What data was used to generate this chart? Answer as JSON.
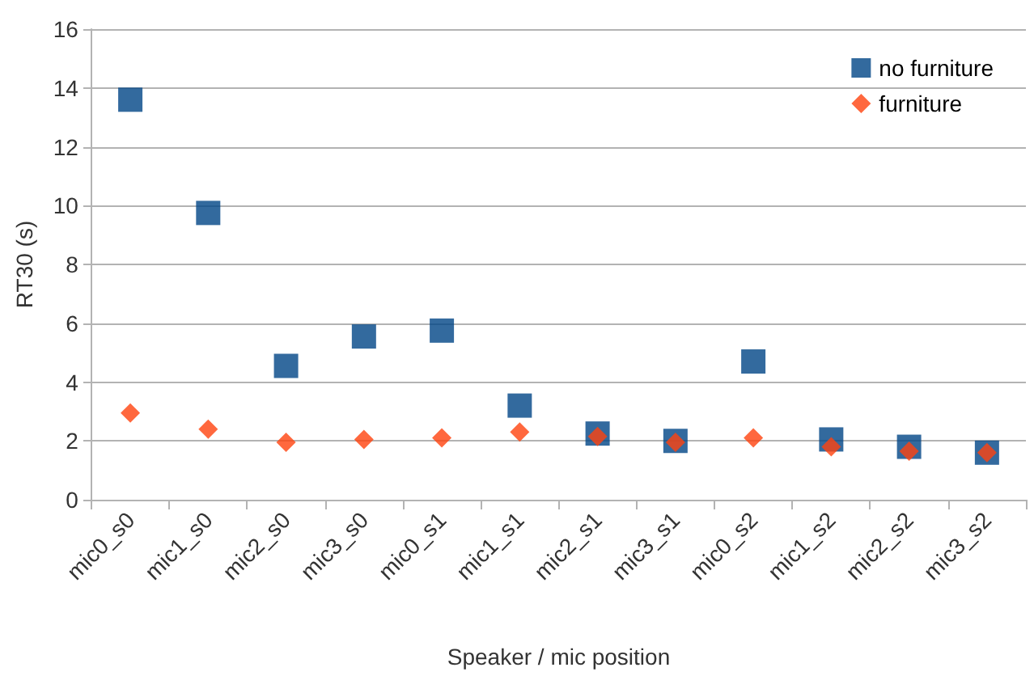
{
  "chart_data": {
    "type": "scatter",
    "xlabel": "Speaker / mic position",
    "ylabel": "RT30 (s)",
    "categories": [
      "mic0_s0",
      "mic1_s0",
      "mic2_s0",
      "mic3_s0",
      "mic0_s1",
      "mic1_s1",
      "mic2_s1",
      "mic3_s1",
      "mic0_s2",
      "mic1_s2",
      "mic2_s2",
      "mic3_s2"
    ],
    "series": [
      {
        "name": "no furniture",
        "color": "#004586",
        "marker": "square",
        "values": [
          13.6,
          9.75,
          4.55,
          5.55,
          5.75,
          3.2,
          2.25,
          2.0,
          4.7,
          2.05,
          1.8,
          1.6
        ]
      },
      {
        "name": "furniture",
        "color": "#ff420e",
        "marker": "diamond",
        "values": [
          2.95,
          2.4,
          1.95,
          2.05,
          2.1,
          2.3,
          2.15,
          1.95,
          2.1,
          1.8,
          1.65,
          1.6
        ]
      }
    ],
    "ylim": [
      0,
      16
    ],
    "yticks": [
      0,
      2,
      4,
      6,
      8,
      10,
      12,
      14,
      16
    ],
    "grid": "y",
    "legend": "top right"
  }
}
